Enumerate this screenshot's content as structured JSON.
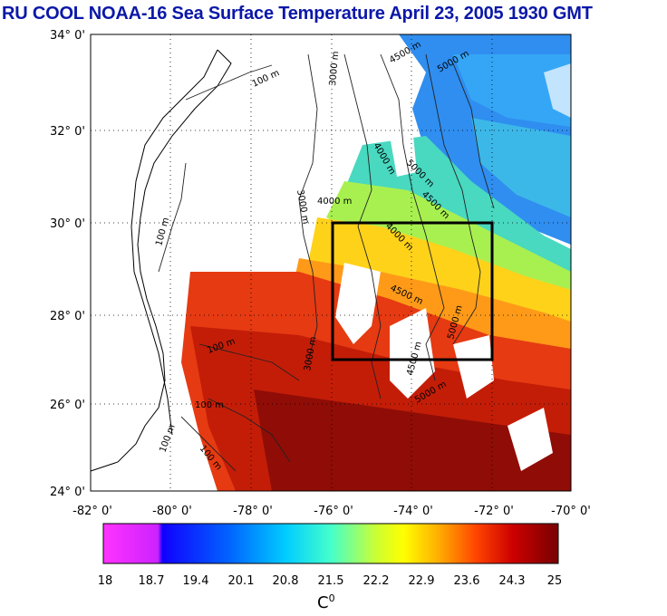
{
  "title": "RU COOL  NOAA-16 Sea Surface Temperature April 23, 2005 1930 GMT",
  "lat_labels": [
    "34° 0'",
    "32° 0'",
    "30° 0'",
    "28° 0'",
    "26° 0'",
    "24° 0'"
  ],
  "lon_labels": [
    "-82° 0'",
    "-80° 0'",
    "-78° 0'",
    "-76° 0'",
    "-74° 0'",
    "-72° 0'",
    "-70° 0'"
  ],
  "contour_labels": [
    "100 m",
    "100 m",
    "100 m",
    "100 m",
    "100 m",
    "100 m",
    "3000 m",
    "3000 m",
    "3000 m",
    "4000 m",
    "4000 m",
    "4000 m",
    "4500 m",
    "4500 m",
    "4500 m",
    "4500 m",
    "5000 m",
    "5000 m",
    "5000 m",
    "5000 m"
  ],
  "colorbar": {
    "ticks": [
      "18",
      "18.7",
      "19.4",
      "20.1",
      "20.8",
      "21.5",
      "22.2",
      "22.9",
      "23.6",
      "24.3",
      "25"
    ],
    "unit": "C",
    "unit_sup": "0",
    "colors": [
      "#ff33ff",
      "#0000ff",
      "#0066ff",
      "#00ddff",
      "#33ffcc",
      "#aaff44",
      "#ffff00",
      "#ffaa00",
      "#ff3300",
      "#bb0000",
      "#770000"
    ]
  },
  "map": {
    "lat_range": [
      24,
      34
    ],
    "lon_range": [
      -82,
      -70
    ],
    "study_box": {
      "lat_range": [
        27,
        30
      ],
      "lon_range": [
        -76,
        -72
      ]
    },
    "grid": "dotted"
  },
  "colors": {
    "title": "#0b18a8",
    "land_outline": "#000000",
    "cloud": "#ffffff"
  }
}
